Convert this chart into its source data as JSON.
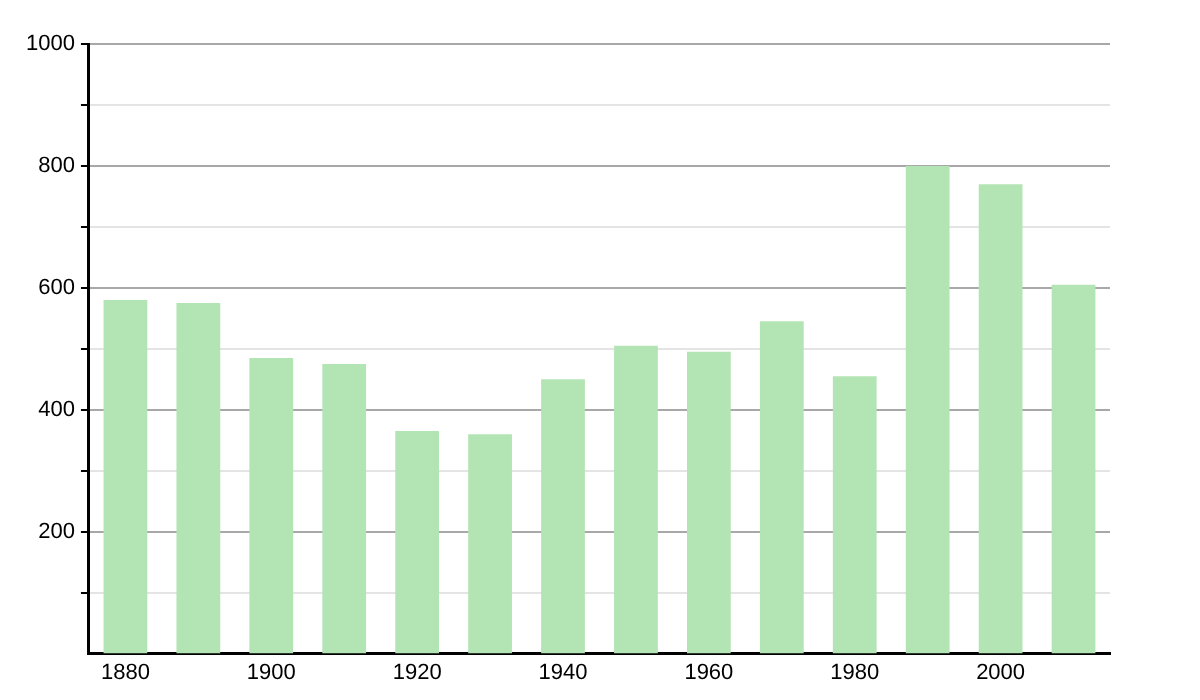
{
  "chart_data": {
    "type": "bar",
    "categories": [
      "1880",
      null,
      "1900",
      null,
      "1920",
      null,
      "1940",
      null,
      "1960",
      null,
      "1980",
      null,
      "2000",
      null
    ],
    "values": [
      580,
      575,
      485,
      475,
      365,
      360,
      450,
      505,
      495,
      545,
      455,
      800,
      770,
      605
    ],
    "color": "#b3e4b3",
    "ylim": [
      0,
      1000
    ],
    "yticks": [
      {
        "value": 100,
        "label": null
      },
      200,
      {
        "value": 300,
        "label": null
      },
      400,
      {
        "value": 500,
        "label": null
      },
      600,
      {
        "value": 700,
        "label": null
      },
      800,
      {
        "value": 900,
        "label": null
      },
      1000
    ],
    "grid": "y"
  }
}
